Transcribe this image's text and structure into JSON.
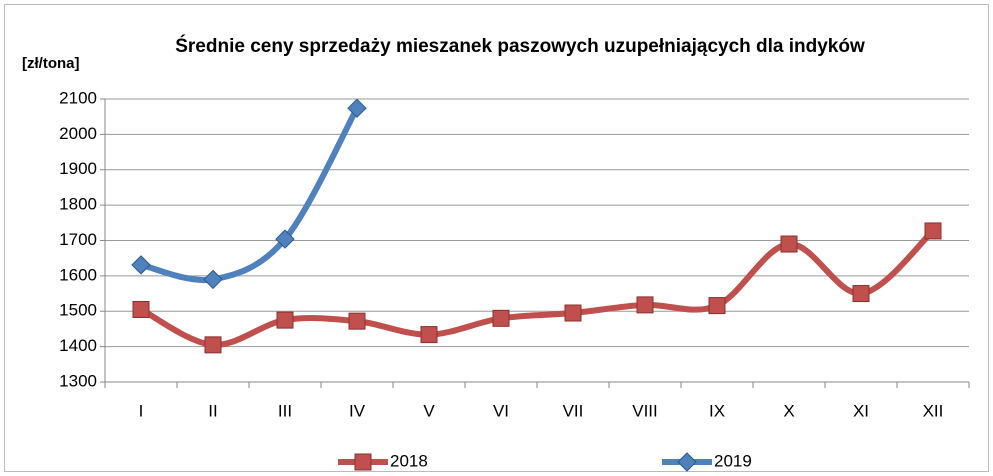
{
  "chart_data": {
    "type": "line",
    "title": "Średnie ceny sprzedaży mieszanek paszowych uzupełniających dla indyków",
    "y_label": "[zł/tona]",
    "categories": [
      "I",
      "II",
      "III",
      "IV",
      "V",
      "VI",
      "VII",
      "VIII",
      "IX",
      "X",
      "XI",
      "XII"
    ],
    "series": [
      {
        "name": "2018",
        "color": "#c0504d",
        "marker": "square",
        "values": [
          1505,
          1405,
          1475,
          1472,
          1434,
          1480,
          1495,
          1518,
          1516,
          1690,
          1550,
          1727
        ]
      },
      {
        "name": "2019",
        "color": "#4f81bd",
        "marker": "diamond",
        "values": [
          1631,
          1590,
          1704,
          2074,
          null,
          null,
          null,
          null,
          null,
          null,
          null,
          null
        ]
      }
    ],
    "ylim": [
      1300,
      2100
    ],
    "yticks": [
      1300,
      1400,
      1500,
      1600,
      1700,
      1800,
      1900,
      2000,
      2100
    ],
    "grid": true,
    "legend": "bottom"
  }
}
